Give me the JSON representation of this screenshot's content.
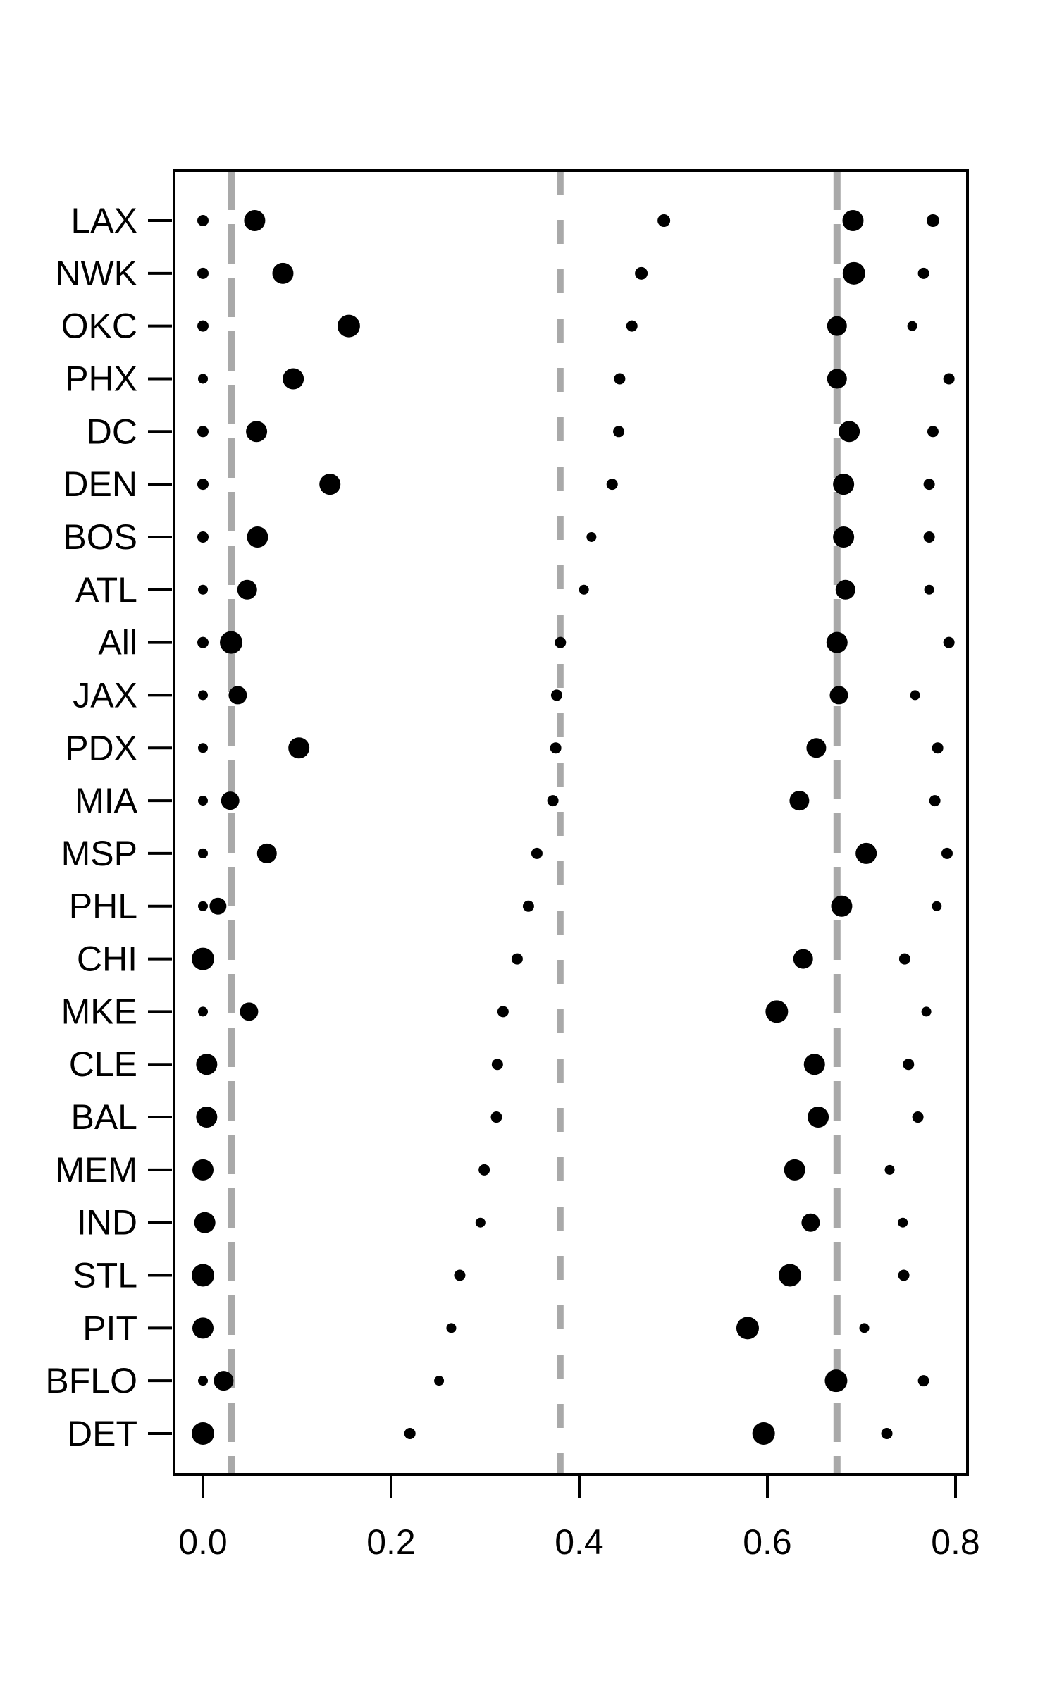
{
  "colors": {
    "dot": "#000000",
    "reference_line": "#a9a9a9",
    "axis": "#000000",
    "background": "#ffffff"
  },
  "chart_data": {
    "type": "scatter",
    "title": "",
    "xlabel": "",
    "ylabel": "",
    "grid": false,
    "legend": false,
    "xlim": [
      -0.031,
      0.813
    ],
    "x_ticks": [
      0.0,
      0.2,
      0.4,
      0.6,
      0.8
    ],
    "x_tick_labels": [
      "0.0",
      "0.2",
      "0.4",
      "0.6",
      "0.8"
    ],
    "reference_lines_x": [
      0.03,
      0.38,
      0.674
    ],
    "categories": [
      "LAX",
      "NWK",
      "OKC",
      "PHX",
      "DC",
      "DEN",
      "BOS",
      "ATL",
      "All",
      "JAX",
      "PDX",
      "MIA",
      "MSP",
      "PHL",
      "CHI",
      "MKE",
      "CLE",
      "BAL",
      "MEM",
      "IND",
      "STL",
      "PIT",
      "BFLO",
      "DET"
    ],
    "rows": [
      {
        "label": "LAX",
        "points": [
          {
            "x": 0.0,
            "r": 8
          },
          {
            "x": 0.055,
            "r": 15
          },
          {
            "x": 0.49,
            "r": 9
          },
          {
            "x": 0.691,
            "r": 15
          },
          {
            "x": 0.776,
            "r": 9
          }
        ]
      },
      {
        "label": "NWK",
        "points": [
          {
            "x": 0.0,
            "r": 8
          },
          {
            "x": 0.085,
            "r": 15
          },
          {
            "x": 0.466,
            "r": 9
          },
          {
            "x": 0.692,
            "r": 16
          },
          {
            "x": 0.766,
            "r": 8
          }
        ]
      },
      {
        "label": "OKC",
        "points": [
          {
            "x": 0.0,
            "r": 8
          },
          {
            "x": 0.155,
            "r": 16
          },
          {
            "x": 0.456,
            "r": 8
          },
          {
            "x": 0.674,
            "r": 14
          },
          {
            "x": 0.754,
            "r": 7
          }
        ]
      },
      {
        "label": "PHX",
        "points": [
          {
            "x": 0.0,
            "r": 7
          },
          {
            "x": 0.096,
            "r": 15
          },
          {
            "x": 0.443,
            "r": 8
          },
          {
            "x": 0.674,
            "r": 14
          },
          {
            "x": 0.793,
            "r": 8
          }
        ]
      },
      {
        "label": "DC",
        "points": [
          {
            "x": 0.0,
            "r": 8
          },
          {
            "x": 0.057,
            "r": 15
          },
          {
            "x": 0.442,
            "r": 8
          },
          {
            "x": 0.687,
            "r": 15
          },
          {
            "x": 0.776,
            "r": 8
          }
        ]
      },
      {
        "label": "DEN",
        "points": [
          {
            "x": 0.0,
            "r": 8
          },
          {
            "x": 0.135,
            "r": 15
          },
          {
            "x": 0.435,
            "r": 8
          },
          {
            "x": 0.681,
            "r": 15
          },
          {
            "x": 0.772,
            "r": 8
          }
        ]
      },
      {
        "label": "BOS",
        "points": [
          {
            "x": 0.0,
            "r": 8
          },
          {
            "x": 0.058,
            "r": 15
          },
          {
            "x": 0.413,
            "r": 7
          },
          {
            "x": 0.681,
            "r": 15
          },
          {
            "x": 0.772,
            "r": 8
          }
        ]
      },
      {
        "label": "ATL",
        "points": [
          {
            "x": 0.0,
            "r": 7
          },
          {
            "x": 0.047,
            "r": 14
          },
          {
            "x": 0.405,
            "r": 7
          },
          {
            "x": 0.683,
            "r": 14
          },
          {
            "x": 0.772,
            "r": 7
          }
        ]
      },
      {
        "label": "All",
        "points": [
          {
            "x": 0.0,
            "r": 8
          },
          {
            "x": 0.03,
            "r": 16
          },
          {
            "x": 0.38,
            "r": 8
          },
          {
            "x": 0.674,
            "r": 15
          },
          {
            "x": 0.793,
            "r": 8
          }
        ]
      },
      {
        "label": "JAX",
        "points": [
          {
            "x": 0.0,
            "r": 7
          },
          {
            "x": 0.037,
            "r": 13
          },
          {
            "x": 0.376,
            "r": 8
          },
          {
            "x": 0.676,
            "r": 13
          },
          {
            "x": 0.757,
            "r": 7
          }
        ]
      },
      {
        "label": "PDX",
        "points": [
          {
            "x": 0.0,
            "r": 7
          },
          {
            "x": 0.102,
            "r": 15
          },
          {
            "x": 0.375,
            "r": 8
          },
          {
            "x": 0.652,
            "r": 14
          },
          {
            "x": 0.781,
            "r": 8
          }
        ]
      },
      {
        "label": "MIA",
        "points": [
          {
            "x": 0.0,
            "r": 7
          },
          {
            "x": 0.029,
            "r": 13
          },
          {
            "x": 0.372,
            "r": 8
          },
          {
            "x": 0.634,
            "r": 14
          },
          {
            "x": 0.778,
            "r": 8
          }
        ]
      },
      {
        "label": "MSP",
        "points": [
          {
            "x": 0.0,
            "r": 7
          },
          {
            "x": 0.068,
            "r": 14
          },
          {
            "x": 0.355,
            "r": 8
          },
          {
            "x": 0.705,
            "r": 15
          },
          {
            "x": 0.791,
            "r": 8
          }
        ]
      },
      {
        "label": "PHL",
        "points": [
          {
            "x": 0.0,
            "r": 7
          },
          {
            "x": 0.016,
            "r": 12
          },
          {
            "x": 0.346,
            "r": 8
          },
          {
            "x": 0.679,
            "r": 15
          },
          {
            "x": 0.78,
            "r": 7
          }
        ]
      },
      {
        "label": "CHI",
        "points": [
          {
            "x": 0.0,
            "r": 16
          },
          {
            "x": 0.334,
            "r": 8
          },
          {
            "x": 0.638,
            "r": 14
          },
          {
            "x": 0.746,
            "r": 8
          }
        ]
      },
      {
        "label": "MKE",
        "points": [
          {
            "x": 0.0,
            "r": 7
          },
          {
            "x": 0.049,
            "r": 13
          },
          {
            "x": 0.319,
            "r": 8
          },
          {
            "x": 0.61,
            "r": 16
          },
          {
            "x": 0.769,
            "r": 7
          }
        ]
      },
      {
        "label": "CLE",
        "points": [
          {
            "x": 0.004,
            "r": 15
          },
          {
            "x": 0.313,
            "r": 8
          },
          {
            "x": 0.65,
            "r": 15
          },
          {
            "x": 0.75,
            "r": 8
          }
        ]
      },
      {
        "label": "BAL",
        "points": [
          {
            "x": 0.004,
            "r": 15
          },
          {
            "x": 0.312,
            "r": 8
          },
          {
            "x": 0.654,
            "r": 15
          },
          {
            "x": 0.76,
            "r": 8
          }
        ]
      },
      {
        "label": "MEM",
        "points": [
          {
            "x": 0.0,
            "r": 15
          },
          {
            "x": 0.299,
            "r": 8
          },
          {
            "x": 0.629,
            "r": 15
          },
          {
            "x": 0.73,
            "r": 7
          }
        ]
      },
      {
        "label": "IND",
        "points": [
          {
            "x": 0.002,
            "r": 15
          },
          {
            "x": 0.295,
            "r": 7
          },
          {
            "x": 0.646,
            "r": 13
          },
          {
            "x": 0.744,
            "r": 7
          }
        ]
      },
      {
        "label": "STL",
        "points": [
          {
            "x": 0.0,
            "r": 16
          },
          {
            "x": 0.273,
            "r": 8
          },
          {
            "x": 0.624,
            "r": 16
          },
          {
            "x": 0.745,
            "r": 8
          }
        ]
      },
      {
        "label": "PIT",
        "points": [
          {
            "x": 0.0,
            "r": 15
          },
          {
            "x": 0.264,
            "r": 7
          },
          {
            "x": 0.579,
            "r": 16
          },
          {
            "x": 0.703,
            "r": 7
          }
        ]
      },
      {
        "label": "BFLO",
        "points": [
          {
            "x": 0.0,
            "r": 7
          },
          {
            "x": 0.022,
            "r": 14
          },
          {
            "x": 0.251,
            "r": 7
          },
          {
            "x": 0.673,
            "r": 16
          },
          {
            "x": 0.766,
            "r": 8
          }
        ]
      },
      {
        "label": "DET",
        "points": [
          {
            "x": 0.0,
            "r": 16
          },
          {
            "x": 0.22,
            "r": 8
          },
          {
            "x": 0.596,
            "r": 16
          },
          {
            "x": 0.727,
            "r": 8
          }
        ]
      }
    ]
  }
}
